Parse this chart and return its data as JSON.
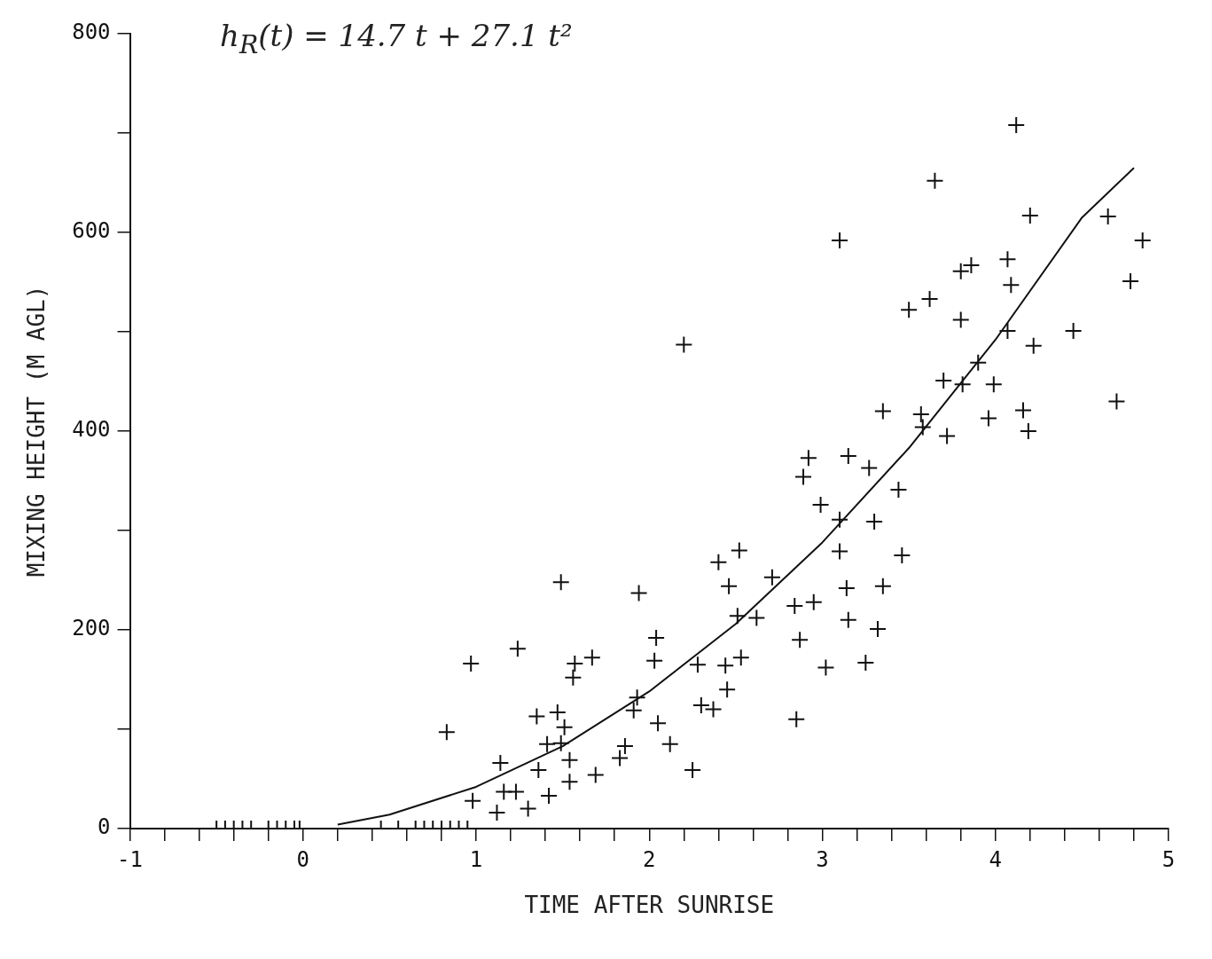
{
  "chart_data": {
    "type": "scatter",
    "xlabel": "TIME AFTER SUNRISE",
    "ylabel": "MIXING HEIGHT (M AGL)",
    "annotations": [
      "h$_{R}$(t) = 14.7 t + 27.1 t²"
    ],
    "xlim": [
      -1,
      5
    ],
    "ylim": [
      0,
      800
    ],
    "xticks": [
      -1,
      {
        "value": -0.8,
        "label": null
      },
      {
        "value": -0.6,
        "label": null
      },
      {
        "value": -0.4,
        "label": null
      },
      {
        "value": -0.2,
        "label": null
      },
      0,
      {
        "value": 0.2,
        "label": null
      },
      {
        "value": 0.4,
        "label": null
      },
      {
        "value": 0.6,
        "label": null
      },
      {
        "value": 0.8,
        "label": null
      },
      1,
      {
        "value": 1.2,
        "label": null
      },
      {
        "value": 1.4,
        "label": null
      },
      {
        "value": 1.6,
        "label": null
      },
      {
        "value": 1.8,
        "label": null
      },
      2,
      {
        "value": 2.2,
        "label": null
      },
      {
        "value": 2.4,
        "label": null
      },
      {
        "value": 2.6,
        "label": null
      },
      {
        "value": 2.8,
        "label": null
      },
      3,
      {
        "value": 3.2,
        "label": null
      },
      {
        "value": 3.4,
        "label": null
      },
      {
        "value": 3.6,
        "label": null
      },
      {
        "value": 3.8,
        "label": null
      },
      4,
      {
        "value": 4.2,
        "label": null
      },
      {
        "value": 4.4,
        "label": null
      },
      {
        "value": 4.6,
        "label": null
      },
      {
        "value": 4.8,
        "label": null
      },
      5
    ],
    "yticks": [
      0,
      {
        "value": 100,
        "label": null
      },
      200,
      {
        "value": 300,
        "label": null
      },
      400,
      {
        "value": 500,
        "label": null
      },
      600,
      {
        "value": 700,
        "label": null
      },
      800
    ],
    "grid": false,
    "legend": false,
    "marker": "cross",
    "series": [
      {
        "color": "#111111",
        "x": [
          -0.5,
          -0.45,
          -0.4,
          -0.35,
          -0.3,
          -0.2,
          -0.15,
          -0.1,
          -0.05,
          -0.02,
          0.45,
          0.55,
          0.65,
          0.7,
          0.75,
          0.8,
          0.85,
          0.9,
          0.95,
          0.83,
          0.97,
          0.98,
          1.14,
          1.12,
          1.24,
          1.16,
          1.23,
          1.3,
          1.35,
          1.36,
          1.41,
          1.42,
          1.49,
          1.47,
          1.49,
          1.51,
          1.54,
          1.54,
          1.56,
          1.57,
          1.67,
          1.69,
          1.83,
          1.86,
          1.91,
          1.94,
          1.93,
          2.04,
          2.03,
          2.05,
          2.12,
          2.2,
          2.25,
          2.28,
          2.3,
          2.37,
          2.4,
          2.44,
          2.46,
          2.45,
          2.52,
          2.53,
          2.51,
          2.62,
          2.71,
          2.85,
          2.84,
          2.87,
          2.92,
          2.89,
          2.95,
          2.99,
          3.02,
          3.1,
          3.1,
          3.1,
          3.14,
          3.15,
          3.15,
          3.25,
          3.27,
          3.3,
          3.32,
          3.35,
          3.35,
          3.44,
          3.46,
          3.5,
          3.57,
          3.58,
          3.62,
          3.65,
          3.7,
          3.72,
          3.8,
          3.81,
          3.8,
          3.86,
          3.9,
          3.99,
          3.96,
          4.07,
          4.09,
          4.07,
          4.12,
          4.2,
          4.22,
          4.16,
          4.19,
          4.45,
          4.65,
          4.7,
          4.78,
          4.85
        ],
        "values": [
          0,
          0,
          0,
          0,
          0,
          0,
          0,
          0,
          0,
          0,
          0,
          0,
          0,
          0,
          0,
          0,
          0,
          0,
          0,
          97,
          166,
          28,
          66,
          16,
          181,
          37,
          37,
          20,
          113,
          59,
          85,
          33,
          248,
          117,
          86,
          102,
          47,
          69,
          152,
          166,
          172,
          54,
          71,
          83,
          119,
          237,
          132,
          192,
          169,
          106,
          85,
          487,
          59,
          165,
          124,
          120,
          268,
          164,
          244,
          140,
          280,
          172,
          214,
          212,
          253,
          110,
          224,
          190,
          373,
          354,
          228,
          326,
          162,
          592,
          311,
          279,
          242,
          375,
          210,
          167,
          363,
          309,
          201,
          420,
          244,
          341,
          275,
          522,
          417,
          404,
          533,
          652,
          451,
          395,
          512,
          447,
          561,
          567,
          469,
          447,
          413,
          573,
          547,
          501,
          708,
          617,
          486,
          421,
          400,
          501,
          616,
          430,
          551,
          592
        ]
      },
      {
        "type": "line",
        "color": "#111111",
        "marker": "none",
        "line_style": "solid",
        "x": [
          0.2,
          0.5,
          1,
          1.5,
          2,
          2.5,
          3,
          3.5,
          4,
          4.5,
          4.8
        ],
        "values": [
          4,
          14,
          42,
          83,
          138,
          206,
          288,
          383,
          492,
          615,
          665
        ]
      }
    ]
  }
}
